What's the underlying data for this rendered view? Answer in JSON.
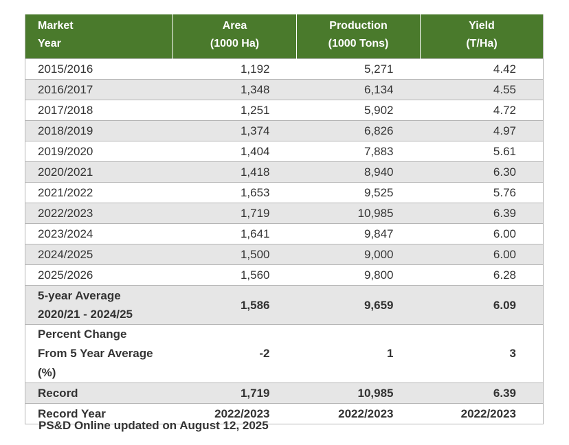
{
  "header": {
    "col1_line1": "Market",
    "col1_line2": "Year",
    "col2_line1": "Area",
    "col2_line2": "(1000 Ha)",
    "col3_line1": "Production",
    "col3_line2": "(1000 Tons)",
    "col4_line1": "Yield",
    "col4_line2": "(T/Ha)"
  },
  "rows": [
    {
      "year": "2015/2016",
      "area": "1,192",
      "production": "5,271",
      "yield": "4.42"
    },
    {
      "year": "2016/2017",
      "area": "1,348",
      "production": "6,134",
      "yield": "4.55"
    },
    {
      "year": "2017/2018",
      "area": "1,251",
      "production": "5,902",
      "yield": "4.72"
    },
    {
      "year": "2018/2019",
      "area": "1,374",
      "production": "6,826",
      "yield": "4.97"
    },
    {
      "year": "2019/2020",
      "area": "1,404",
      "production": "7,883",
      "yield": "5.61"
    },
    {
      "year": "2020/2021",
      "area": "1,418",
      "production": "8,940",
      "yield": "6.30"
    },
    {
      "year": "2021/2022",
      "area": "1,653",
      "production": "9,525",
      "yield": "5.76"
    },
    {
      "year": "2022/2023",
      "area": "1,719",
      "production": "10,985",
      "yield": "6.39"
    },
    {
      "year": "2023/2024",
      "area": "1,641",
      "production": "9,847",
      "yield": "6.00"
    },
    {
      "year": "2024/2025",
      "area": "1,500",
      "production": "9,000",
      "yield": "6.00"
    },
    {
      "year": "2025/2026",
      "area": "1,560",
      "production": "9,800",
      "yield": "6.28"
    }
  ],
  "average": {
    "label_line1": "5-year Average",
    "label_line2": "2020/21 - 2024/25",
    "area": "1,586",
    "production": "9,659",
    "yield": "6.09"
  },
  "percent_change": {
    "label_line1": "Percent Change",
    "label_line2": "From 5 Year Average",
    "label_line3": "(%)",
    "area": "-2",
    "production": "1",
    "yield": "3"
  },
  "record": {
    "label": "Record",
    "area": "1,719",
    "production": "10,985",
    "yield": "6.39"
  },
  "record_year": {
    "label": "Record Year",
    "area": "2022/2023",
    "production": "2022/2023",
    "yield": "2022/2023"
  },
  "footer": "PS&D Online updated on August 12, 2025"
}
